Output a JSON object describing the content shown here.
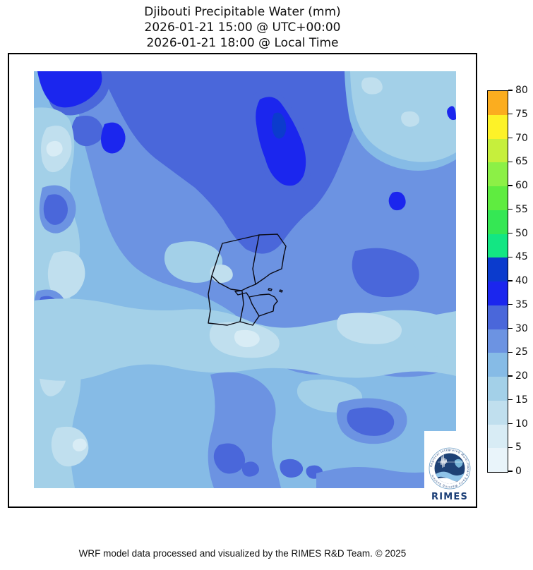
{
  "title": {
    "line1": "Djibouti Precipitable Water (mm)",
    "line2": "2026-01-21 15:00 @ UTC+00:00",
    "line3": "2026-01-21 18:00 @ Local Time"
  },
  "footer": {
    "credit": "WRF model data processed and visualized by the RIMES R&D Team. © 2025"
  },
  "logo": {
    "text": "RIMES",
    "ring_text": "Regional Integrated Multi-Hazard Early Warning System"
  },
  "chart_data": {
    "type": "heatmap",
    "subtype": "filled-contour-map",
    "title": "Djibouti Precipitable Water (mm)",
    "units": "mm",
    "valid_time_utc": "2026-01-21 15:00 @ UTC+00:00",
    "valid_time_local": "2026-01-21 18:00 @ Local Time",
    "overlay": "Djibouti national and regional administrative boundaries drawn in black near map center",
    "colorbar": {
      "min": 0,
      "max": 80,
      "step": 5,
      "tick_labels": [
        0,
        5,
        10,
        15,
        20,
        25,
        30,
        35,
        40,
        45,
        50,
        55,
        60,
        65,
        70,
        75,
        80
      ],
      "colors": [
        "#e9f4fa",
        "#d8ecf5",
        "#c0dfee",
        "#a3d0e8",
        "#86bbe6",
        "#6c93e2",
        "#4a67da",
        "#1b26ee",
        "#0b3bcd",
        "#13e683",
        "#35e754",
        "#5fec40",
        "#8cf046",
        "#c6ef3c",
        "#fdf228",
        "#fbad1f"
      ],
      "position": "right",
      "outline_color": "#000000"
    },
    "field_summary": {
      "displayed_range_mm": [
        5,
        45
      ],
      "maxima": "35-45 mm patches in far NW corner, N-center elongated blob and small NE spots",
      "minima": "5-15 mm along west edge strip, NE corner area and central-east light band",
      "background": "mostly 20-30 mm light/cornflower blues; darker 30-35 mm mass across upper middle"
    }
  }
}
